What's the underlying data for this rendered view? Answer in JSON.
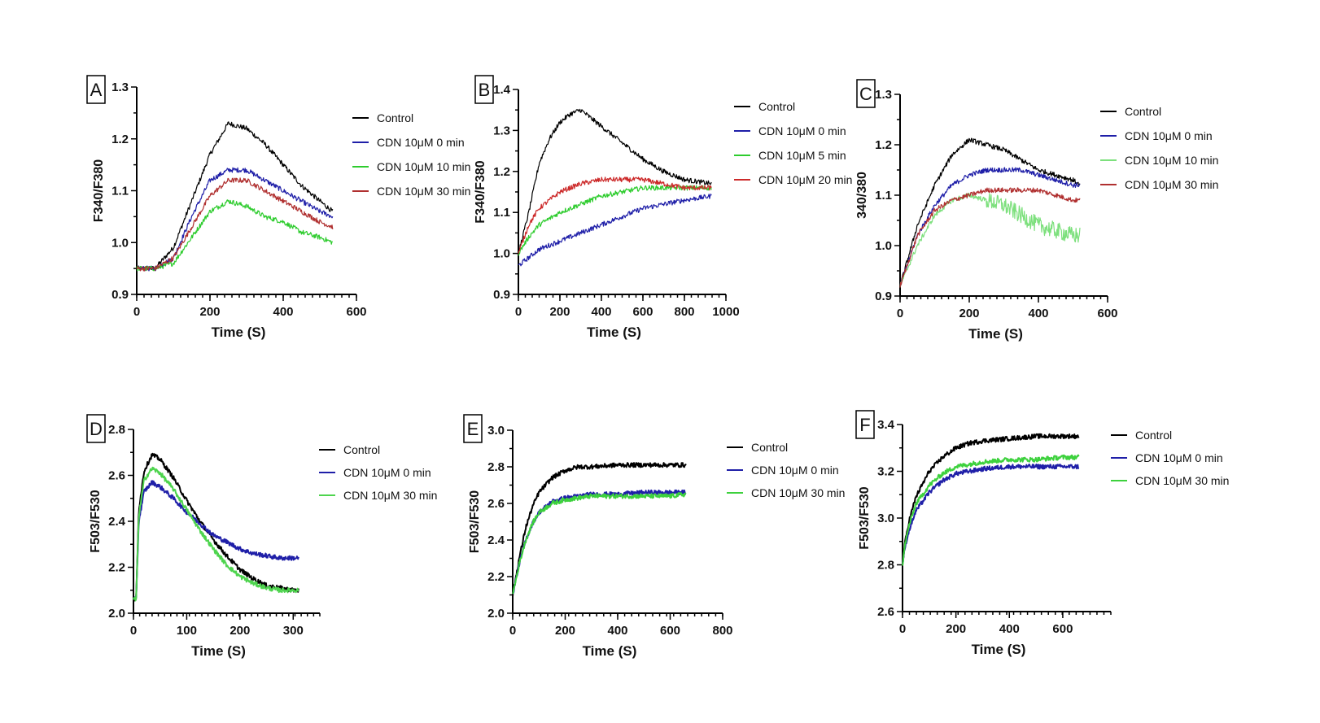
{
  "chart_data": [
    {
      "panel": "A",
      "type": "line",
      "ylabel": "F340/F380",
      "xlabel": "Time (S)",
      "xlim": [
        0,
        600
      ],
      "ylim": [
        0.9,
        1.3
      ],
      "xticks": [
        0,
        200,
        400,
        600
      ],
      "yticks": [
        0.9,
        1.0,
        1.1,
        1.2,
        1.3
      ],
      "legend_position": "right",
      "series": [
        {
          "name": "Control",
          "color": "#000000",
          "x": [
            0,
            50,
            100,
            150,
            200,
            250,
            300,
            350,
            400,
            450,
            500,
            535
          ],
          "y": [
            0.95,
            0.95,
            0.99,
            1.08,
            1.17,
            1.23,
            1.22,
            1.19,
            1.15,
            1.11,
            1.08,
            1.06
          ]
        },
        {
          "name": "CDN 10μM 0 min",
          "color": "#1f1fa8",
          "x": [
            0,
            50,
            100,
            150,
            200,
            250,
            300,
            350,
            400,
            450,
            500,
            535
          ],
          "y": [
            0.95,
            0.95,
            0.97,
            1.05,
            1.12,
            1.14,
            1.14,
            1.12,
            1.1,
            1.08,
            1.06,
            1.05
          ]
        },
        {
          "name": "CDN 10μM 10 min",
          "color": "#2ecc2e",
          "x": [
            0,
            50,
            100,
            150,
            200,
            250,
            300,
            350,
            400,
            450,
            500,
            535
          ],
          "y": [
            0.95,
            0.95,
            0.96,
            1.01,
            1.06,
            1.08,
            1.07,
            1.05,
            1.04,
            1.02,
            1.01,
            1.0
          ]
        },
        {
          "name": "CDN 10μM 30 min",
          "color": "#b03030",
          "x": [
            0,
            50,
            100,
            150,
            200,
            250,
            300,
            350,
            400,
            450,
            500,
            535
          ],
          "y": [
            0.95,
            0.95,
            0.97,
            1.03,
            1.09,
            1.12,
            1.12,
            1.1,
            1.08,
            1.06,
            1.04,
            1.03
          ]
        }
      ]
    },
    {
      "panel": "B",
      "type": "line",
      "ylabel": "F340/F380",
      "xlabel": "Time (S)",
      "xlim": [
        0,
        1000
      ],
      "ylim": [
        0.9,
        1.4
      ],
      "xticks": [
        0,
        200,
        400,
        600,
        800,
        1000
      ],
      "yticks": [
        0.9,
        1.0,
        1.1,
        1.2,
        1.3,
        1.4
      ],
      "legend_position": "right",
      "series": [
        {
          "name": "Control",
          "color": "#000000",
          "x": [
            0,
            50,
            100,
            150,
            200,
            250,
            300,
            400,
            500,
            600,
            700,
            800,
            930
          ],
          "y": [
            1.0,
            1.1,
            1.22,
            1.28,
            1.32,
            1.34,
            1.35,
            1.31,
            1.27,
            1.23,
            1.2,
            1.18,
            1.17
          ]
        },
        {
          "name": "CDN 10μM 0 min",
          "color": "#1f1fa8",
          "x": [
            0,
            50,
            100,
            200,
            300,
            400,
            500,
            600,
            700,
            800,
            930
          ],
          "y": [
            0.97,
            0.99,
            1.01,
            1.03,
            1.05,
            1.07,
            1.09,
            1.11,
            1.12,
            1.13,
            1.14
          ]
        },
        {
          "name": "CDN 10μM 5 min",
          "color": "#2ecc2e",
          "x": [
            0,
            50,
            100,
            200,
            300,
            400,
            500,
            600,
            700,
            800,
            930
          ],
          "y": [
            1.0,
            1.04,
            1.07,
            1.1,
            1.12,
            1.14,
            1.15,
            1.16,
            1.16,
            1.16,
            1.16
          ]
        },
        {
          "name": "CDN 10μM 20 min",
          "color": "#cc2a2a",
          "x": [
            0,
            50,
            100,
            200,
            300,
            400,
            500,
            600,
            700,
            800,
            930
          ],
          "y": [
            1.0,
            1.07,
            1.11,
            1.15,
            1.17,
            1.18,
            1.18,
            1.18,
            1.17,
            1.16,
            1.16
          ]
        }
      ]
    },
    {
      "panel": "C",
      "type": "line",
      "ylabel": "340/380",
      "xlabel": "Time (S)",
      "xlim": [
        0,
        600
      ],
      "ylim": [
        0.9,
        1.3
      ],
      "xticks": [
        0,
        200,
        400,
        600
      ],
      "yticks": [
        0.9,
        1.0,
        1.1,
        1.2,
        1.3
      ],
      "legend_position": "right",
      "series": [
        {
          "name": "Control",
          "color": "#000000",
          "x": [
            0,
            25,
            50,
            100,
            150,
            200,
            250,
            300,
            350,
            400,
            450,
            500,
            520
          ],
          "y": [
            0.92,
            0.98,
            1.04,
            1.12,
            1.18,
            1.21,
            1.2,
            1.19,
            1.17,
            1.15,
            1.14,
            1.13,
            1.12
          ]
        },
        {
          "name": "CDN 10μM 0 min",
          "color": "#1f1fa8",
          "x": [
            0,
            25,
            50,
            100,
            150,
            200,
            250,
            300,
            350,
            400,
            450,
            500,
            520
          ],
          "y": [
            0.92,
            0.97,
            1.02,
            1.08,
            1.12,
            1.14,
            1.15,
            1.15,
            1.15,
            1.14,
            1.13,
            1.12,
            1.12
          ]
        },
        {
          "name": "CDN 10μM 10 min",
          "color": "#7de07d",
          "x": [
            0,
            25,
            50,
            100,
            150,
            200,
            250,
            300,
            350,
            400,
            450,
            500,
            520
          ],
          "y": [
            0.92,
            0.96,
            1.0,
            1.06,
            1.09,
            1.1,
            1.09,
            1.08,
            1.06,
            1.04,
            1.03,
            1.02,
            1.02
          ]
        },
        {
          "name": "CDN 10μM 30 min",
          "color": "#b03030",
          "x": [
            0,
            25,
            50,
            100,
            150,
            200,
            250,
            300,
            350,
            400,
            450,
            500,
            520
          ],
          "y": [
            0.92,
            0.97,
            1.02,
            1.07,
            1.09,
            1.1,
            1.11,
            1.11,
            1.11,
            1.11,
            1.1,
            1.09,
            1.09
          ]
        }
      ]
    },
    {
      "panel": "D",
      "type": "line",
      "ylabel": "F503/F530",
      "xlabel": "Time (S)",
      "xlim": [
        0,
        350
      ],
      "ylim": [
        2.0,
        2.8
      ],
      "xticks": [
        0,
        100,
        200,
        300
      ],
      "yticks": [
        2.0,
        2.2,
        2.4,
        2.6,
        2.8
      ],
      "legend_position": "right",
      "series": [
        {
          "name": "Control",
          "color": "#000000",
          "x": [
            0,
            5,
            10,
            20,
            35,
            50,
            75,
            100,
            125,
            150,
            175,
            200,
            225,
            250,
            275,
            300,
            310
          ],
          "y": [
            2.06,
            2.06,
            2.45,
            2.62,
            2.69,
            2.67,
            2.59,
            2.49,
            2.4,
            2.32,
            2.25,
            2.19,
            2.15,
            2.12,
            2.11,
            2.1,
            2.1
          ]
        },
        {
          "name": "CDN 10μM 0 min",
          "color": "#1f1fa8",
          "x": [
            0,
            5,
            10,
            20,
            35,
            50,
            75,
            100,
            125,
            150,
            175,
            200,
            225,
            250,
            275,
            300,
            310
          ],
          "y": [
            2.06,
            2.06,
            2.4,
            2.53,
            2.57,
            2.55,
            2.5,
            2.44,
            2.39,
            2.34,
            2.31,
            2.28,
            2.26,
            2.25,
            2.24,
            2.24,
            2.24
          ]
        },
        {
          "name": "CDN 10μM 30 min",
          "color": "#4ed44e",
          "x": [
            0,
            5,
            10,
            20,
            35,
            50,
            75,
            100,
            125,
            150,
            175,
            200,
            225,
            250,
            275,
            300,
            310
          ],
          "y": [
            2.06,
            2.06,
            2.42,
            2.58,
            2.63,
            2.61,
            2.54,
            2.45,
            2.36,
            2.28,
            2.21,
            2.16,
            2.13,
            2.11,
            2.1,
            2.1,
            2.1
          ]
        }
      ]
    },
    {
      "panel": "E",
      "type": "line",
      "ylabel": "F503/F530",
      "xlabel": "Time (S)",
      "xlim": [
        0,
        800
      ],
      "ylim": [
        2.0,
        3.0
      ],
      "xticks": [
        0,
        200,
        400,
        600,
        800
      ],
      "yticks": [
        2.0,
        2.2,
        2.4,
        2.6,
        2.8,
        3.0
      ],
      "legend_position": "right",
      "series": [
        {
          "name": "Control",
          "color": "#000000",
          "x": [
            0,
            25,
            50,
            75,
            100,
            150,
            200,
            250,
            300,
            400,
            500,
            600,
            660
          ],
          "y": [
            2.1,
            2.3,
            2.47,
            2.58,
            2.66,
            2.74,
            2.78,
            2.8,
            2.8,
            2.81,
            2.81,
            2.81,
            2.81
          ]
        },
        {
          "name": "CDN 10μM 0 min",
          "color": "#1f1fa8",
          "x": [
            0,
            25,
            50,
            75,
            100,
            150,
            200,
            250,
            300,
            400,
            500,
            600,
            660
          ],
          "y": [
            2.1,
            2.27,
            2.4,
            2.49,
            2.55,
            2.61,
            2.63,
            2.64,
            2.65,
            2.65,
            2.66,
            2.66,
            2.66
          ]
        },
        {
          "name": "CDN 10μM 30 min",
          "color": "#3dd13d",
          "x": [
            0,
            25,
            50,
            75,
            100,
            150,
            200,
            250,
            300,
            400,
            500,
            600,
            660
          ],
          "y": [
            2.1,
            2.27,
            2.4,
            2.49,
            2.55,
            2.6,
            2.62,
            2.63,
            2.64,
            2.64,
            2.64,
            2.64,
            2.65
          ]
        }
      ]
    },
    {
      "panel": "F",
      "type": "line",
      "ylabel": "F503/F530",
      "xlabel": "Time (S)",
      "xlim": [
        0,
        780
      ],
      "ylim": [
        2.6,
        3.4
      ],
      "xticks": [
        0,
        200,
        400,
        600
      ],
      "yticks": [
        2.6,
        2.8,
        3.0,
        3.2,
        3.4
      ],
      "legend_position": "right",
      "series": [
        {
          "name": "Control",
          "color": "#000000",
          "x": [
            0,
            10,
            25,
            50,
            100,
            150,
            200,
            250,
            300,
            400,
            500,
            600,
            660
          ],
          "y": [
            2.8,
            2.9,
            2.99,
            3.09,
            3.2,
            3.26,
            3.3,
            3.32,
            3.33,
            3.34,
            3.35,
            3.35,
            3.35
          ]
        },
        {
          "name": "CDN 10μM 0 min",
          "color": "#1f1fa8",
          "x": [
            0,
            10,
            25,
            50,
            100,
            150,
            200,
            250,
            300,
            400,
            500,
            600,
            660
          ],
          "y": [
            2.8,
            2.88,
            2.95,
            3.03,
            3.11,
            3.16,
            3.19,
            3.2,
            3.21,
            3.22,
            3.22,
            3.22,
            3.22
          ]
        },
        {
          "name": "CDN 10μM 30 min",
          "color": "#3dd13d",
          "x": [
            0,
            10,
            25,
            50,
            100,
            150,
            200,
            250,
            300,
            400,
            500,
            600,
            660
          ],
          "y": [
            2.8,
            2.89,
            2.97,
            3.06,
            3.14,
            3.19,
            3.22,
            3.23,
            3.24,
            3.25,
            3.25,
            3.26,
            3.26
          ]
        }
      ]
    }
  ]
}
